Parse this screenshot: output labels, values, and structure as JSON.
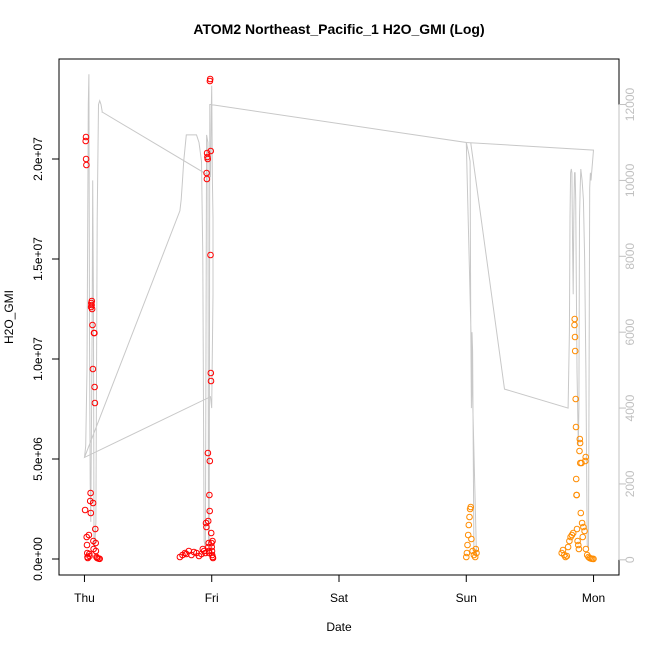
{
  "chart_data": {
    "type": "scatter",
    "title": "ATOM2 Northeast_Pacific_1 H2O_GMI (Log)",
    "xlabel": "Date",
    "ylabel": "H2O_GMI",
    "x_ticks": [
      {
        "label": "Thu",
        "x": 0
      },
      {
        "label": "Fri",
        "x": 1
      },
      {
        "label": "Sat",
        "x": 2
      },
      {
        "label": "Sun",
        "x": 3
      },
      {
        "label": "Mon",
        "x": 4
      }
    ],
    "xlim": [
      -0.2,
      4.2
    ],
    "ylim": [
      -800000,
      25000000
    ],
    "y_ticks": [
      {
        "label": "0.0e+00",
        "v": 0
      },
      {
        "label": "5.0e+06",
        "v": 5000000
      },
      {
        "label": "1.0e+07",
        "v": 10000000
      },
      {
        "label": "1.5e+07",
        "v": 15000000
      },
      {
        "label": "2.0e+07",
        "v": 20000000
      }
    ],
    "y2lim": [
      -400,
      13200
    ],
    "y2_ticks": [
      {
        "label": "0",
        "v": 0
      },
      {
        "label": "2000",
        "v": 2000
      },
      {
        "label": "4000",
        "v": 4000
      },
      {
        "label": "6000",
        "v": 6000
      },
      {
        "label": "8000",
        "v": 8000
      },
      {
        "label": "10000",
        "v": 10000
      },
      {
        "label": "12000",
        "v": 12000
      }
    ],
    "colors": {
      "red": "#ff0000",
      "orange": "#ff8c00",
      "altitude": "#c8c8c8",
      "axis": "#000000",
      "axis_right": "#c0c0c0"
    },
    "series": [
      {
        "color": "red",
        "points": [
          [
            0.005,
            2450000
          ],
          [
            0.01,
            20900000
          ],
          [
            0.012,
            21100000
          ],
          [
            0.013,
            20000000
          ],
          [
            0.015,
            19700000
          ],
          [
            0.018,
            1100000
          ],
          [
            0.02,
            700000
          ],
          [
            0.022,
            300000
          ],
          [
            0.024,
            100000
          ],
          [
            0.026,
            50000
          ],
          [
            0.035,
            1200000
          ],
          [
            0.038,
            250000
          ],
          [
            0.04,
            150000
          ],
          [
            0.045,
            2900000
          ],
          [
            0.048,
            3300000
          ],
          [
            0.05,
            2300000
          ],
          [
            0.052,
            12600000
          ],
          [
            0.054,
            12800000
          ],
          [
            0.056,
            12700000
          ],
          [
            0.058,
            12900000
          ],
          [
            0.06,
            12500000
          ],
          [
            0.063,
            11700000
          ],
          [
            0.066,
            9500000
          ],
          [
            0.068,
            2800000
          ],
          [
            0.07,
            900000
          ],
          [
            0.072,
            500000
          ],
          [
            0.075,
            11300000
          ],
          [
            0.078,
            11300000
          ],
          [
            0.08,
            8600000
          ],
          [
            0.082,
            7800000
          ],
          [
            0.085,
            1500000
          ],
          [
            0.088,
            800000
          ],
          [
            0.09,
            400000
          ],
          [
            0.095,
            100000
          ],
          [
            0.1,
            50000
          ],
          [
            0.11,
            20000
          ],
          [
            0.12,
            10000
          ],
          [
            0.75,
            100000
          ],
          [
            0.77,
            200000
          ],
          [
            0.79,
            300000
          ],
          [
            0.8,
            250000
          ],
          [
            0.82,
            400000
          ],
          [
            0.84,
            200000
          ],
          [
            0.86,
            350000
          ],
          [
            0.88,
            300000
          ],
          [
            0.9,
            150000
          ],
          [
            0.92,
            250000
          ],
          [
            0.93,
            500000
          ],
          [
            0.94,
            400000
          ],
          [
            0.95,
            300000
          ],
          [
            0.955,
            1800000
          ],
          [
            0.958,
            1600000
          ],
          [
            0.96,
            19300000
          ],
          [
            0.962,
            19000000
          ],
          [
            0.964,
            20300000
          ],
          [
            0.966,
            20100000
          ],
          [
            0.968,
            20000000
          ],
          [
            0.97,
            5300000
          ],
          [
            0.972,
            1900000
          ],
          [
            0.974,
            600000
          ],
          [
            0.976,
            800000
          ],
          [
            0.978,
            400000
          ],
          [
            0.98,
            300000
          ],
          [
            0.982,
            3200000
          ],
          [
            0.984,
            2400000
          ],
          [
            0.985,
            4900000
          ],
          [
            0.986,
            23900000
          ],
          [
            0.988,
            24000000
          ],
          [
            0.99,
            15200000
          ],
          [
            0.992,
            20400000
          ],
          [
            0.993,
            9300000
          ],
          [
            0.994,
            8900000
          ],
          [
            0.996,
            1300000
          ],
          [
            0.998,
            800000
          ],
          [
            1.0,
            600000
          ],
          [
            1.002,
            400000
          ],
          [
            1.004,
            200000
          ],
          [
            1.006,
            900000
          ],
          [
            1.008,
            100000
          ],
          [
            1.01,
            50000
          ]
        ]
      },
      {
        "color": "orange",
        "points": [
          [
            3.0,
            100000
          ],
          [
            3.005,
            300000
          ],
          [
            3.01,
            700000
          ],
          [
            3.015,
            1200000
          ],
          [
            3.02,
            1700000
          ],
          [
            3.025,
            2100000
          ],
          [
            3.03,
            2500000
          ],
          [
            3.035,
            2600000
          ],
          [
            3.04,
            1000000
          ],
          [
            3.05,
            400000
          ],
          [
            3.06,
            200000
          ],
          [
            3.07,
            100000
          ],
          [
            3.075,
            500000
          ],
          [
            3.08,
            300000
          ],
          [
            3.75,
            300000
          ],
          [
            3.76,
            450000
          ],
          [
            3.77,
            200000
          ],
          [
            3.78,
            100000
          ],
          [
            3.79,
            150000
          ],
          [
            3.8,
            600000
          ],
          [
            3.81,
            900000
          ],
          [
            3.82,
            1100000
          ],
          [
            3.83,
            1200000
          ],
          [
            3.84,
            1300000
          ],
          [
            3.85,
            11700000
          ],
          [
            3.852,
            12000000
          ],
          [
            3.854,
            11100000
          ],
          [
            3.856,
            10400000
          ],
          [
            3.86,
            8000000
          ],
          [
            3.862,
            6600000
          ],
          [
            3.864,
            4000000
          ],
          [
            3.866,
            3200000
          ],
          [
            3.868,
            3200000
          ],
          [
            3.87,
            1500000
          ],
          [
            3.875,
            900000
          ],
          [
            3.88,
            700000
          ],
          [
            3.885,
            500000
          ],
          [
            3.89,
            5400000
          ],
          [
            3.892,
            6000000
          ],
          [
            3.894,
            5800000
          ],
          [
            3.896,
            4800000
          ],
          [
            3.9,
            2300000
          ],
          [
            3.905,
            4800000
          ],
          [
            3.91,
            1800000
          ],
          [
            3.915,
            1100000
          ],
          [
            3.92,
            1600000
          ],
          [
            3.93,
            1400000
          ],
          [
            3.935,
            4900000
          ],
          [
            3.938,
            5100000
          ],
          [
            3.94,
            500000
          ],
          [
            3.95,
            200000
          ],
          [
            3.96,
            100000
          ],
          [
            3.97,
            50000
          ],
          [
            3.98,
            20000
          ],
          [
            3.99,
            10000
          ],
          [
            4.0,
            5000
          ]
        ]
      }
    ],
    "altitude_line": [
      [
        0.0,
        2700
      ],
      [
        0.01,
        3000
      ],
      [
        0.02,
        5000
      ],
      [
        0.03,
        12000
      ],
      [
        0.035,
        12800
      ],
      [
        0.04,
        6000
      ],
      [
        0.045,
        2000
      ],
      [
        0.05,
        1000
      ],
      [
        0.06,
        6000
      ],
      [
        0.065,
        10000
      ],
      [
        0.07,
        7000
      ],
      [
        0.075,
        500
      ],
      [
        0.08,
        300
      ],
      [
        0.09,
        1000
      ],
      [
        0.1,
        9000
      ],
      [
        0.11,
        12000
      ],
      [
        0.12,
        12100
      ],
      [
        0.13,
        12000
      ],
      [
        0.14,
        11800
      ],
      [
        0.135,
        11800
      ],
      [
        0.14,
        11800
      ],
      [
        0.99,
        10100
      ],
      [
        0.995,
        11500
      ],
      [
        1.0,
        12500
      ],
      [
        1.005,
        10000
      ],
      [
        1.01,
        9000
      ],
      [
        1.01,
        7000
      ],
      [
        1.0,
        4000
      ],
      [
        0.99,
        4300
      ],
      [
        0.0,
        2700
      ],
      [
        0.75,
        9200
      ],
      [
        0.76,
        9500
      ],
      [
        0.77,
        10000
      ],
      [
        0.78,
        10500
      ],
      [
        0.8,
        11200
      ],
      [
        0.82,
        11200
      ],
      [
        0.86,
        11200
      ],
      [
        0.88,
        11200
      ],
      [
        0.9,
        11000
      ],
      [
        0.92,
        10500
      ],
      [
        0.93,
        8000
      ],
      [
        0.94,
        500
      ],
      [
        0.95,
        300
      ],
      [
        0.96,
        11200
      ],
      [
        0.97,
        11000
      ],
      [
        0.975,
        500
      ],
      [
        0.98,
        300
      ],
      [
        0.985,
        12000
      ],
      [
        0.99,
        12000
      ],
      [
        3.0,
        11000
      ],
      [
        3.02,
        10700
      ],
      [
        3.03,
        10500
      ],
      [
        3.035,
        6500
      ],
      [
        3.04,
        4000
      ],
      [
        3.045,
        6000
      ],
      [
        3.05,
        5500
      ],
      [
        3.06,
        300
      ],
      [
        3.07,
        200
      ],
      [
        3.08,
        100
      ],
      [
        3.0,
        11000
      ],
      [
        4.0,
        10800
      ],
      [
        3.98,
        10000
      ],
      [
        3.975,
        10200
      ],
      [
        3.97,
        9800
      ],
      [
        3.96,
        300
      ],
      [
        3.95,
        400
      ],
      [
        3.94,
        5000
      ],
      [
        3.93,
        8000
      ],
      [
        3.92,
        9500
      ],
      [
        3.91,
        10000
      ],
      [
        3.9,
        10300
      ],
      [
        3.895,
        9800
      ],
      [
        3.89,
        9000
      ],
      [
        3.885,
        4000
      ],
      [
        3.88,
        3000
      ],
      [
        3.87,
        5000
      ],
      [
        3.865,
        7000
      ],
      [
        3.86,
        9500
      ],
      [
        3.855,
        10200
      ],
      [
        3.85,
        10200
      ],
      [
        3.845,
        9000
      ],
      [
        3.84,
        7000
      ],
      [
        3.835,
        8500
      ],
      [
        3.83,
        10200
      ],
      [
        3.825,
        10300
      ],
      [
        3.82,
        10200
      ],
      [
        3.815,
        9000
      ],
      [
        3.81,
        6000
      ],
      [
        3.8,
        4000
      ],
      [
        3.3,
        4500
      ],
      [
        3.035,
        11000
      ]
    ]
  }
}
